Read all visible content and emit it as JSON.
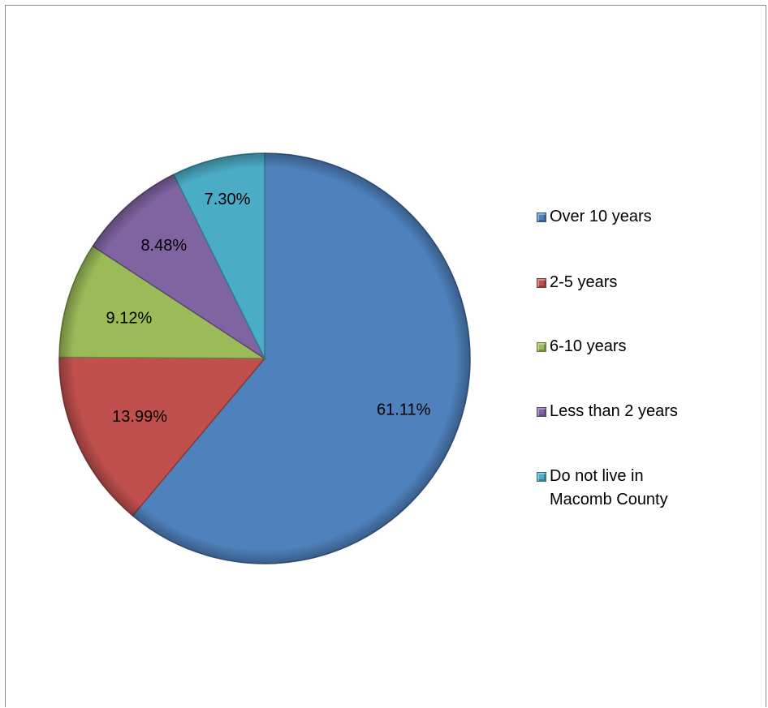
{
  "chart_data": {
    "type": "pie",
    "title": "",
    "categories": [
      "Over 10  years",
      "2-5 years",
      "6-10 years",
      "Less than 2 years",
      "Do not live in Macomb County"
    ],
    "values": [
      61.11,
      13.99,
      9.12,
      8.48,
      7.3
    ],
    "value_labels": [
      "61.11%",
      "13.99%",
      "9.12%",
      "8.48%",
      "7.30%"
    ],
    "colors": [
      "#4F81BD",
      "#C0504D",
      "#9BBB59",
      "#8064A2",
      "#4BACC6"
    ],
    "start_angle_deg": 0,
    "direction": "clockwise",
    "legend_position": "right"
  }
}
